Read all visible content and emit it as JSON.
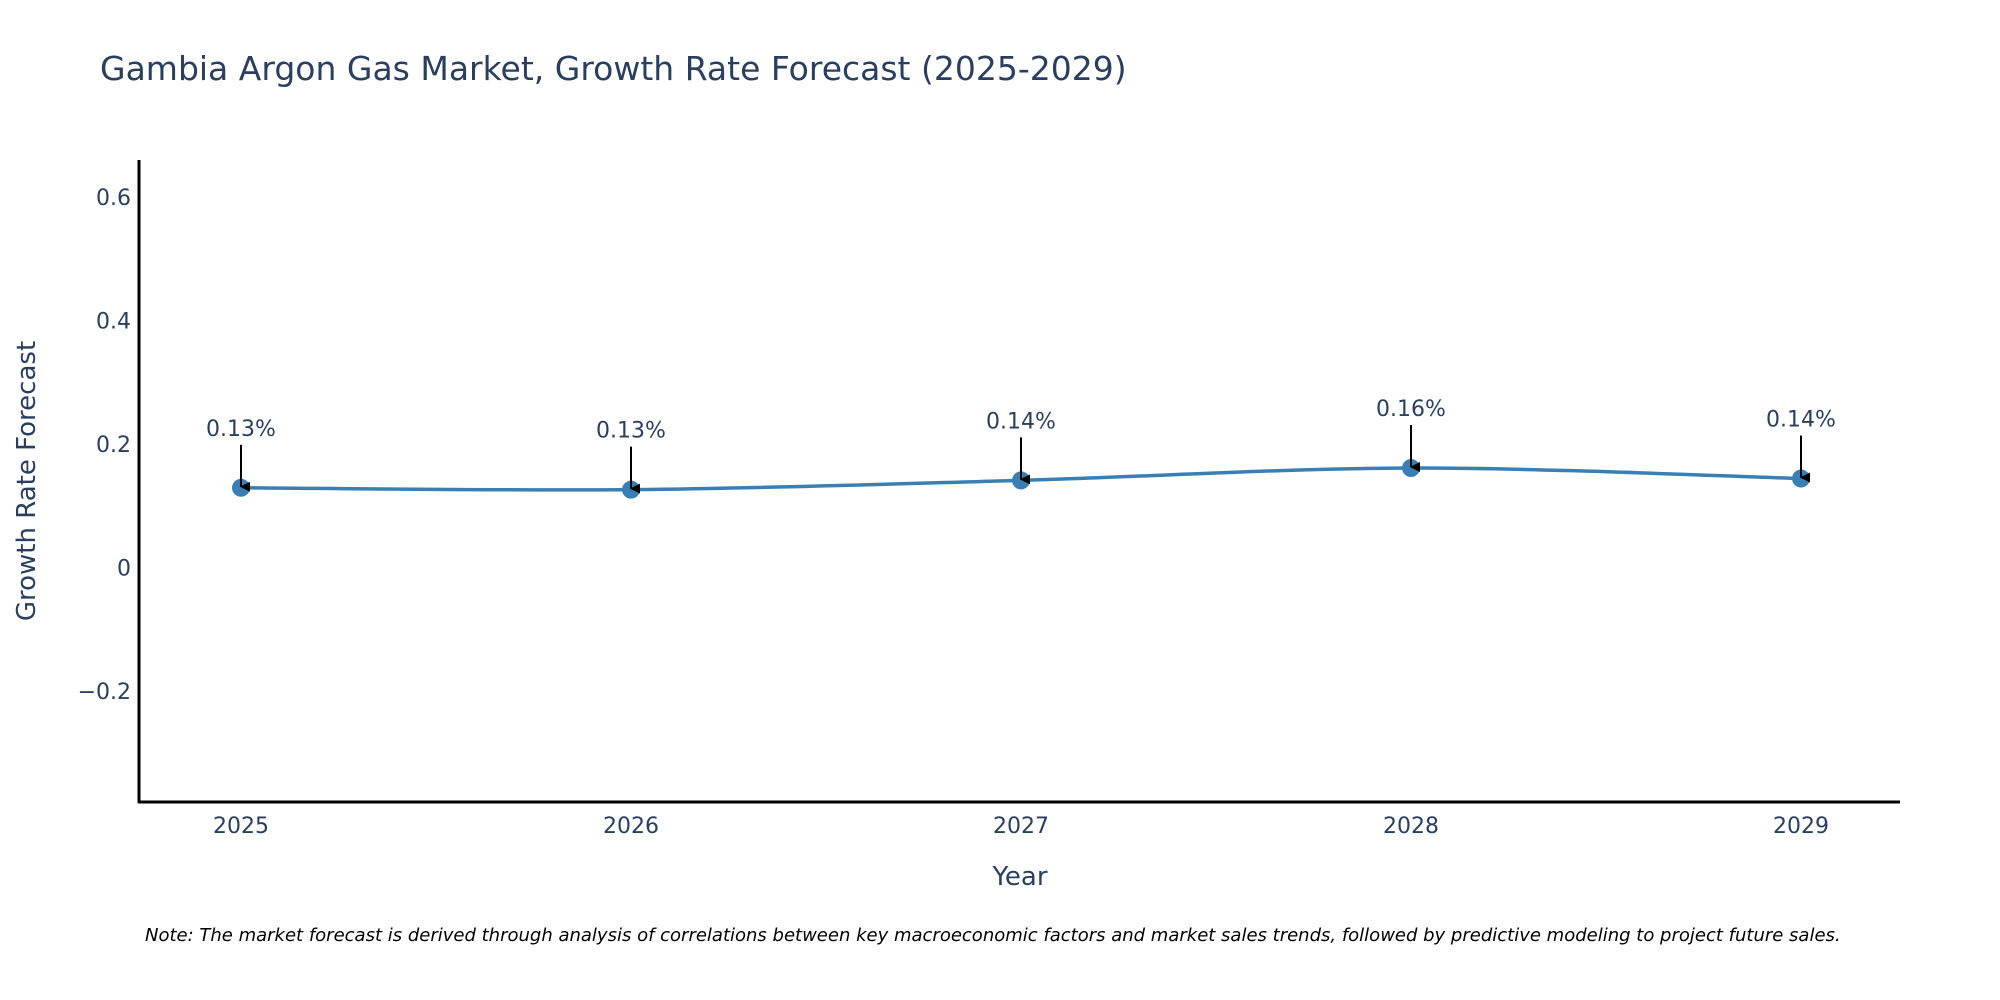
{
  "chart_data": {
    "type": "line",
    "title": "Gambia Argon Gas Market, Growth Rate Forecast (2025-2029)",
    "xlabel": "Year",
    "ylabel": "Growth Rate Forecast",
    "categories": [
      "2025",
      "2026",
      "2027",
      "2028",
      "2029"
    ],
    "series": [
      {
        "name": "Growth Rate Forecast",
        "values": [
          0.129,
          0.126,
          0.141,
          0.161,
          0.144
        ],
        "labels": [
          "0.13%",
          "0.13%",
          "0.14%",
          "0.16%",
          "0.14%"
        ],
        "color": "#3a7fb4"
      }
    ],
    "ylim": [
      -0.38,
      0.66
    ],
    "yticks": [
      -0.2,
      0,
      0.2,
      0.4,
      0.6
    ],
    "ytick_labels": [
      "−0.2",
      "0",
      "0.2",
      "0.4",
      "0.6"
    ],
    "grid": false,
    "legend": "none",
    "note": "Note: The market forecast is derived through analysis of correlations between key macroeconomic factors and market sales trends, followed by predictive modeling to project future sales."
  },
  "colors": {
    "text": "#2a3f5f",
    "axis": "#000000",
    "arrow": "#000000",
    "line": "#3a7fb4"
  }
}
